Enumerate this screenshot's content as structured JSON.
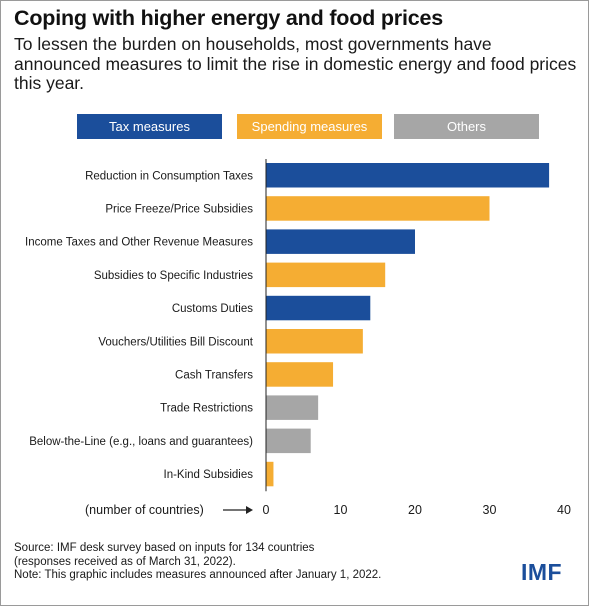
{
  "title": "Coping with higher energy and food prices",
  "subtitle": "To lessen the burden on households, most governments have announced measures to limit the rise in domestic energy and food prices this year.",
  "legend": [
    {
      "label": "Tax measures",
      "color": "#1b4e9b"
    },
    {
      "label": "Spending measures",
      "color": "#f5ad33"
    },
    {
      "label": "Others",
      "color": "#a6a6a6"
    }
  ],
  "chart_data": {
    "type": "bar",
    "orientation": "horizontal",
    "categories": [
      "Reduction in Consumption Taxes",
      "Price Freeze/Price Subsidies",
      "Income Taxes and Other Revenue Measures",
      "Subsidies to Specific Industries",
      "Customs Duties",
      "Vouchers/Utilities Bill Discount",
      "Cash Transfers",
      "Trade Restrictions",
      "Below-the-Line (e.g., loans and guarantees)",
      "In-Kind Subsidies"
    ],
    "values": [
      38,
      30,
      20,
      16,
      14,
      13,
      9,
      7,
      6,
      1
    ],
    "groups": [
      "Tax measures",
      "Spending measures",
      "Tax measures",
      "Spending measures",
      "Tax measures",
      "Spending measures",
      "Spending measures",
      "Others",
      "Others",
      "Spending measures"
    ],
    "xlabel": "(number of countries)",
    "xlim": [
      0,
      40
    ],
    "xticks": [
      0,
      10,
      20,
      30,
      40
    ],
    "grid": false
  },
  "source_lines": [
    "Source: IMF desk survey based on inputs for 134 countries",
    "(responses received as of March 31, 2022).",
    "Note: This graphic includes measures announced after January 1, 2022."
  ],
  "logo": "IMF"
}
